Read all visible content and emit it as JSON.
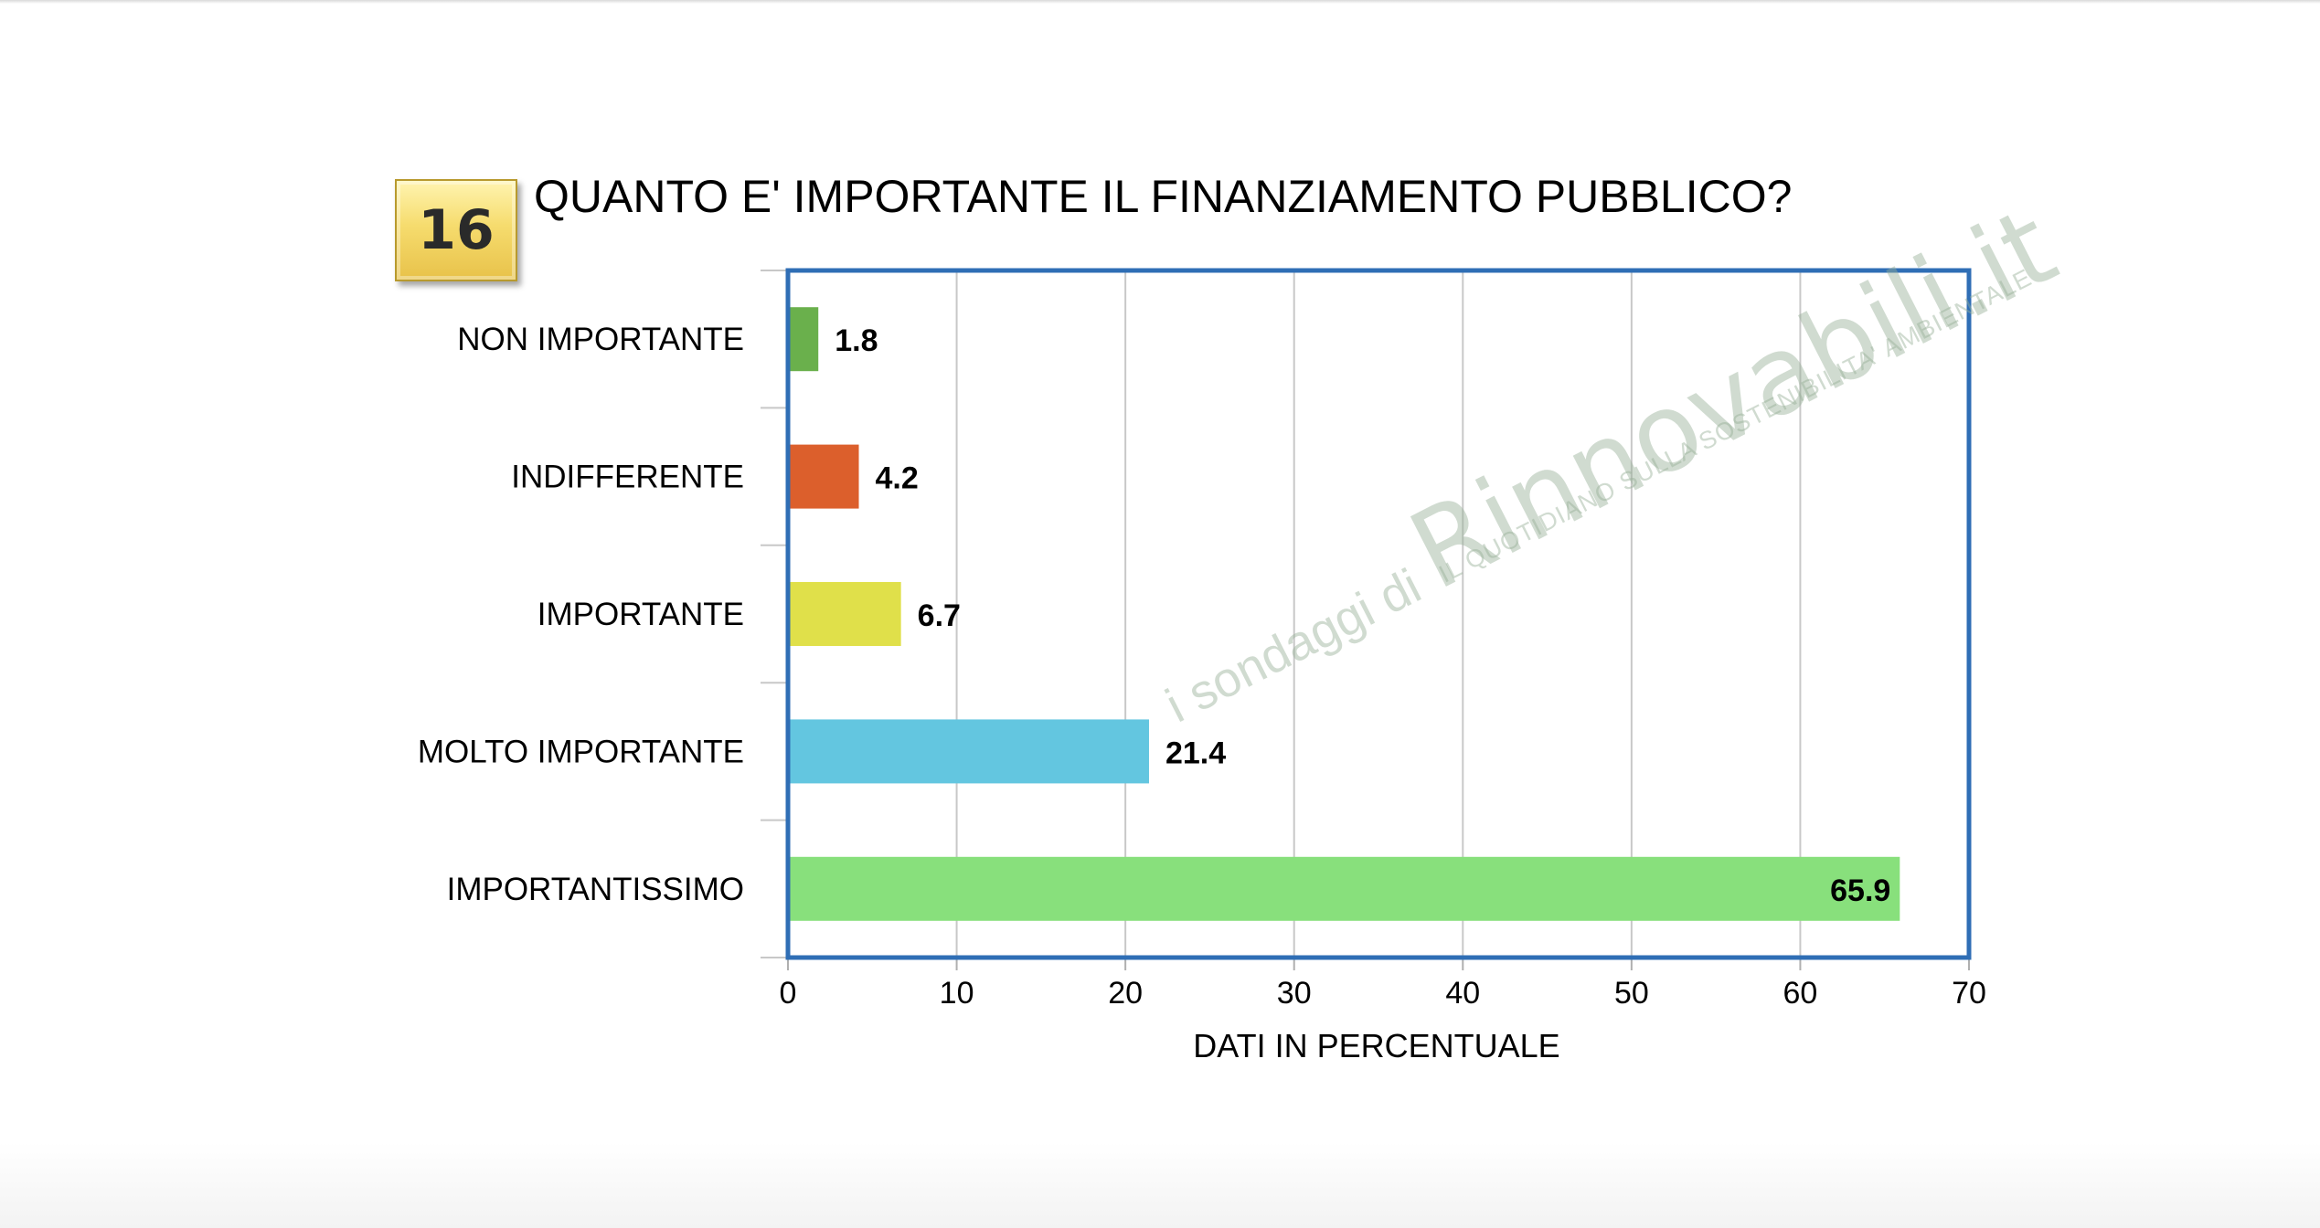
{
  "badge": "16",
  "title": "QUANTO E' IMPORTANTE IL FINANZIAMENTO PUBBLICO?",
  "watermark": {
    "prefix": "i sondaggi di ",
    "brand": "Rinnovabili.it",
    "tagline": "IL QUOTIDIANO SULLA SOSTENIBILITA' AMBIENTALE"
  },
  "chart_data": {
    "type": "bar",
    "orientation": "horizontal",
    "categories": [
      "NON IMPORTANTE",
      "INDIFFERENTE",
      "IMPORTANTE",
      "MOLTO IMPORTANTE",
      "IMPORTANTISSIMO"
    ],
    "values": [
      1.8,
      4.2,
      6.7,
      21.4,
      65.9
    ],
    "value_labels": [
      "1.8",
      "4.2",
      "6.7",
      "21.4",
      "65.9"
    ],
    "colors": [
      "#6ab04c",
      "#dc5f2c",
      "#e0e04a",
      "#63c6e0",
      "#88e07c"
    ],
    "xlabel": "DATI IN PERCENTUALE",
    "xlim": [
      0,
      70
    ],
    "xticks": [
      0,
      10,
      20,
      30,
      40,
      50,
      60,
      70
    ],
    "grid": true,
    "frame_color": "#2f6eb5"
  }
}
